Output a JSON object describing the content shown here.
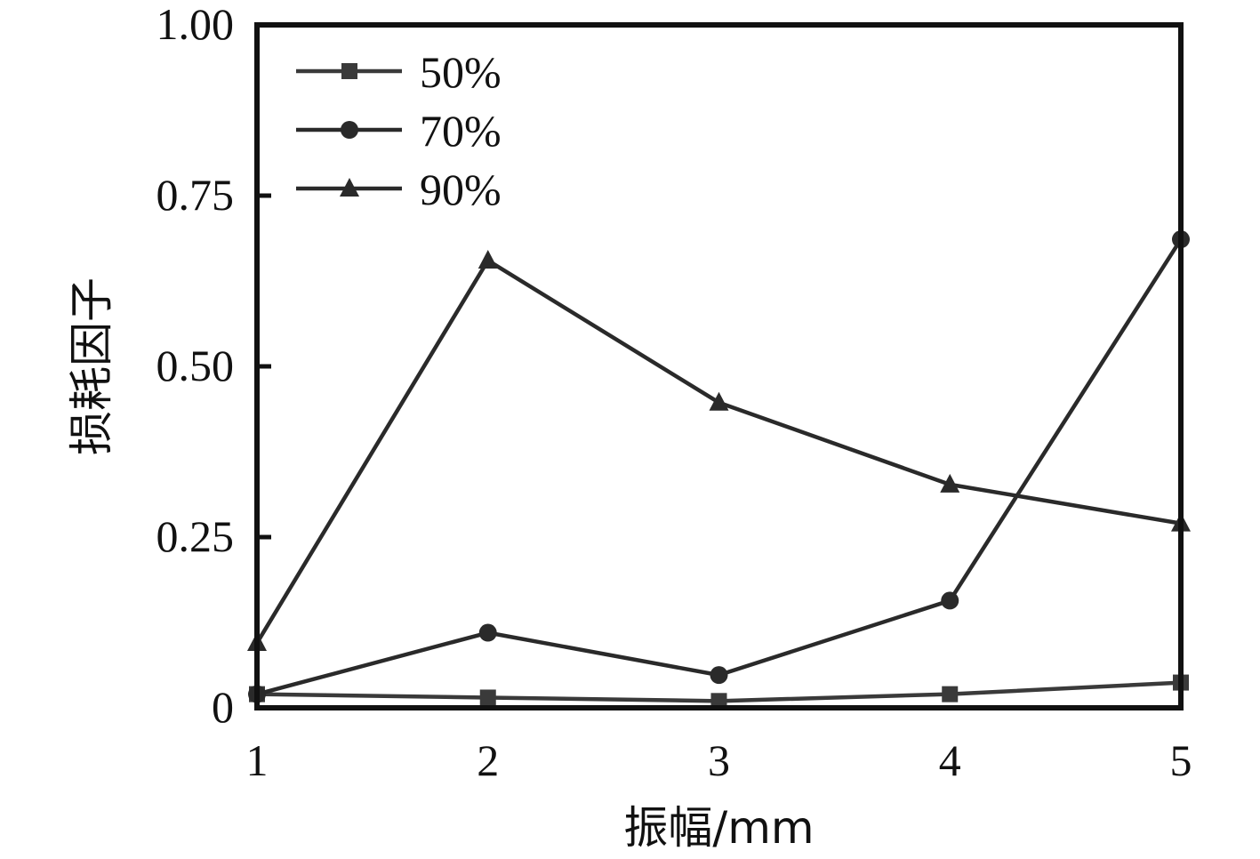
{
  "chart_data": {
    "type": "line",
    "xlabel": "振幅/mm",
    "ylabel": "损耗因子",
    "x": [
      1,
      2,
      3,
      4,
      5
    ],
    "x_tick_labels": [
      "1",
      "2",
      "3",
      "4",
      "5"
    ],
    "y_ticks": [
      0,
      0.25,
      0.5,
      0.75,
      1.0
    ],
    "y_tick_labels": [
      "0",
      "0.25",
      "0.50",
      "0.75",
      "1.00"
    ],
    "xlim": [
      1,
      5
    ],
    "ylim": [
      0,
      1.0
    ],
    "grid": false,
    "legend_position": "top-left",
    "series": [
      {
        "name": "50%",
        "marker": "square",
        "color": "#3a3a3a",
        "values": [
          0.02,
          0.015,
          0.01,
          0.02,
          0.037
        ]
      },
      {
        "name": "70%",
        "marker": "circle",
        "color": "#2a2a2a",
        "values": [
          0.02,
          0.11,
          0.048,
          0.157,
          0.686
        ]
      },
      {
        "name": "90%",
        "marker": "triangle",
        "color": "#2a2a2a",
        "values": [
          0.095,
          0.655,
          0.447,
          0.327,
          0.27
        ]
      }
    ]
  }
}
